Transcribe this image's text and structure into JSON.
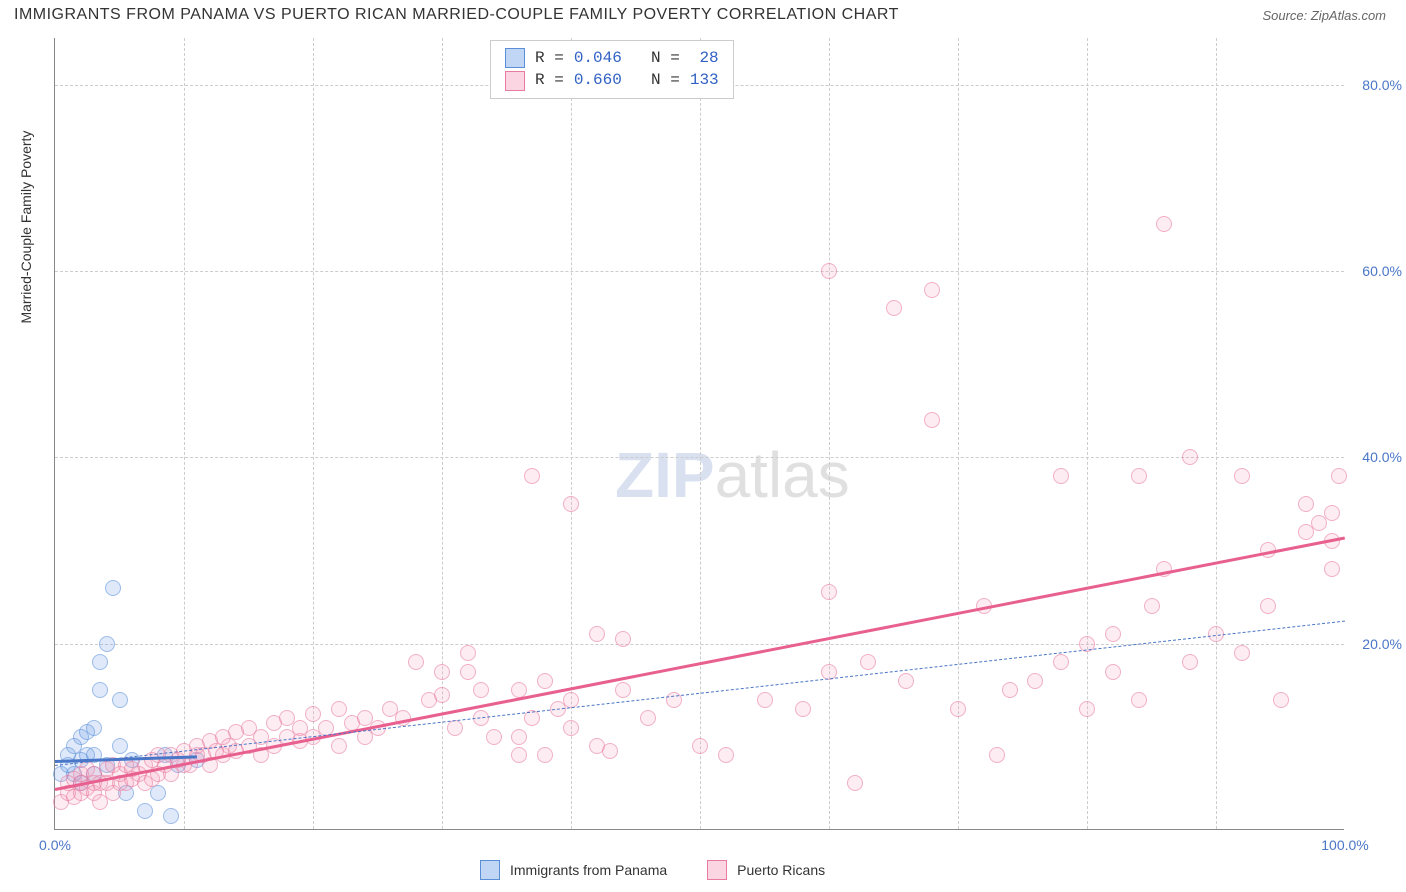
{
  "title": "IMMIGRANTS FROM PANAMA VS PUERTO RICAN MARRIED-COUPLE FAMILY POVERTY CORRELATION CHART",
  "source": "Source: ZipAtlas.com",
  "yaxis_label": "Married-Couple Family Poverty",
  "watermark": {
    "zip": "ZIP",
    "atlas": "atlas"
  },
  "chart": {
    "type": "scatter",
    "xlim": [
      0,
      100
    ],
    "ylim": [
      0,
      85
    ],
    "xticks": [
      {
        "v": 0,
        "label": "0.0%"
      },
      {
        "v": 10,
        "label": ""
      },
      {
        "v": 20,
        "label": ""
      },
      {
        "v": 30,
        "label": ""
      },
      {
        "v": 40,
        "label": ""
      },
      {
        "v": 50,
        "label": ""
      },
      {
        "v": 60,
        "label": ""
      },
      {
        "v": 70,
        "label": ""
      },
      {
        "v": 80,
        "label": ""
      },
      {
        "v": 90,
        "label": ""
      },
      {
        "v": 100,
        "label": "100.0%"
      }
    ],
    "yticks": [
      {
        "v": 20,
        "label": "20.0%"
      },
      {
        "v": 40,
        "label": "40.0%"
      },
      {
        "v": 60,
        "label": "60.0%"
      },
      {
        "v": 80,
        "label": "80.0%"
      }
    ],
    "grid_color": "#cccccc",
    "background_color": "#ffffff",
    "series": [
      {
        "name": "Immigrants from Panama",
        "color_fill": "rgba(100,150,230,0.35)",
        "color_stroke": "#5a8fd8",
        "marker_size": 16,
        "R": "0.046",
        "N": "28",
        "trend_solid": {
          "x1": 0,
          "y1": 7.5,
          "x2": 11,
          "y2": 8.0,
          "color": "#4a76c7",
          "width": 2.5
        },
        "trend_dash": {
          "x1": 0,
          "y1": 7.0,
          "x2": 100,
          "y2": 22.5,
          "color": "#4a76c7",
          "width": 1.5
        },
        "points": [
          [
            0.5,
            6
          ],
          [
            1,
            7
          ],
          [
            1,
            8
          ],
          [
            1.5,
            9
          ],
          [
            1.5,
            6
          ],
          [
            2,
            7.5
          ],
          [
            2,
            10
          ],
          [
            2,
            5
          ],
          [
            2.5,
            10.5
          ],
          [
            2.5,
            8
          ],
          [
            3,
            6
          ],
          [
            3,
            8
          ],
          [
            3,
            11
          ],
          [
            3.5,
            15
          ],
          [
            3.5,
            18
          ],
          [
            4,
            7
          ],
          [
            4,
            20
          ],
          [
            4.5,
            26
          ],
          [
            5,
            14
          ],
          [
            5,
            9
          ],
          [
            5.5,
            4
          ],
          [
            6,
            7.5
          ],
          [
            7,
            2
          ],
          [
            8,
            4
          ],
          [
            8.5,
            8
          ],
          [
            9,
            1.5
          ],
          [
            9.5,
            7
          ],
          [
            11,
            7.5
          ]
        ]
      },
      {
        "name": "Puerto Ricans",
        "color_fill": "rgba(245,150,180,0.3)",
        "color_stroke": "#e87ba0",
        "marker_size": 16,
        "R": "0.660",
        "N": "133",
        "trend_solid": {
          "x1": 0,
          "y1": 4.5,
          "x2": 100,
          "y2": 31.5,
          "color": "#e8608f",
          "width": 2.5
        },
        "points": [
          [
            0.5,
            3
          ],
          [
            1,
            4
          ],
          [
            1,
            5
          ],
          [
            1.5,
            3.5
          ],
          [
            1.5,
            5.5
          ],
          [
            2,
            4
          ],
          [
            2,
            5
          ],
          [
            2,
            6
          ],
          [
            2.5,
            4.5
          ],
          [
            2.5,
            6.5
          ],
          [
            3,
            4
          ],
          [
            3,
            5
          ],
          [
            3,
            6
          ],
          [
            3.5,
            3
          ],
          [
            3.5,
            5
          ],
          [
            4,
            5
          ],
          [
            4,
            6.5
          ],
          [
            4.5,
            4
          ],
          [
            4.5,
            7
          ],
          [
            5,
            5
          ],
          [
            5,
            6
          ],
          [
            5.5,
            5
          ],
          [
            5.5,
            7
          ],
          [
            6,
            5.5
          ],
          [
            6,
            6.5
          ],
          [
            6.5,
            6
          ],
          [
            7,
            5
          ],
          [
            7,
            7
          ],
          [
            7.5,
            5.5
          ],
          [
            7.5,
            7.5
          ],
          [
            8,
            6
          ],
          [
            8,
            8
          ],
          [
            8.5,
            7
          ],
          [
            9,
            6
          ],
          [
            9,
            8
          ],
          [
            9.5,
            7.5
          ],
          [
            10,
            7
          ],
          [
            10,
            8.5
          ],
          [
            10.5,
            7
          ],
          [
            11,
            8
          ],
          [
            11,
            9
          ],
          [
            11.5,
            8
          ],
          [
            12,
            7
          ],
          [
            12,
            9.5
          ],
          [
            12.5,
            8.5
          ],
          [
            13,
            8
          ],
          [
            13,
            10
          ],
          [
            13.5,
            9
          ],
          [
            14,
            8.5
          ],
          [
            14,
            10.5
          ],
          [
            15,
            9
          ],
          [
            15,
            11
          ],
          [
            16,
            8
          ],
          [
            16,
            10
          ],
          [
            17,
            9
          ],
          [
            17,
            11.5
          ],
          [
            18,
            10
          ],
          [
            18,
            12
          ],
          [
            19,
            9.5
          ],
          [
            19,
            11
          ],
          [
            20,
            10
          ],
          [
            20,
            12.5
          ],
          [
            21,
            11
          ],
          [
            22,
            9
          ],
          [
            22,
            13
          ],
          [
            23,
            11.5
          ],
          [
            24,
            10
          ],
          [
            24,
            12
          ],
          [
            25,
            11
          ],
          [
            26,
            13
          ],
          [
            27,
            12
          ],
          [
            28,
            18
          ],
          [
            29,
            14
          ],
          [
            30,
            14.5
          ],
          [
            30,
            17
          ],
          [
            31,
            11
          ],
          [
            32,
            19
          ],
          [
            32,
            17
          ],
          [
            33,
            12
          ],
          [
            33,
            15
          ],
          [
            34,
            10
          ],
          [
            36,
            10
          ],
          [
            36,
            15
          ],
          [
            36,
            8
          ],
          [
            37,
            12
          ],
          [
            37,
            38
          ],
          [
            38,
            16
          ],
          [
            38,
            8
          ],
          [
            39,
            13
          ],
          [
            40,
            11
          ],
          [
            40,
            14
          ],
          [
            40,
            35
          ],
          [
            42,
            21
          ],
          [
            42,
            9
          ],
          [
            43,
            8.5
          ],
          [
            44,
            15
          ],
          [
            44,
            20.5
          ],
          [
            46,
            12
          ],
          [
            48,
            14
          ],
          [
            50,
            9
          ],
          [
            52,
            8
          ],
          [
            55,
            14
          ],
          [
            58,
            13
          ],
          [
            60,
            17
          ],
          [
            60,
            25.5
          ],
          [
            60,
            60
          ],
          [
            62,
            5
          ],
          [
            63,
            18
          ],
          [
            65,
            56
          ],
          [
            66,
            16
          ],
          [
            68,
            44
          ],
          [
            68,
            58
          ],
          [
            70,
            13
          ],
          [
            72,
            24
          ],
          [
            73,
            8
          ],
          [
            74,
            15
          ],
          [
            76,
            16
          ],
          [
            78,
            18
          ],
          [
            78,
            38
          ],
          [
            80,
            13
          ],
          [
            80,
            20
          ],
          [
            82,
            21
          ],
          [
            82,
            17
          ],
          [
            84,
            14
          ],
          [
            84,
            38
          ],
          [
            85,
            24
          ],
          [
            86,
            65
          ],
          [
            86,
            28
          ],
          [
            88,
            40
          ],
          [
            88,
            18
          ],
          [
            90,
            21
          ],
          [
            92,
            38
          ],
          [
            92,
            19
          ],
          [
            94,
            24
          ],
          [
            94,
            30
          ],
          [
            95,
            14
          ],
          [
            97,
            35
          ],
          [
            97,
            32
          ],
          [
            98,
            33
          ],
          [
            99,
            31
          ],
          [
            99,
            28
          ],
          [
            99,
            34
          ],
          [
            99.5,
            38
          ]
        ]
      }
    ]
  },
  "legend_bottom": [
    {
      "swatch": "blue",
      "label": "Immigrants from Panama"
    },
    {
      "swatch": "pink",
      "label": "Puerto Ricans"
    }
  ]
}
